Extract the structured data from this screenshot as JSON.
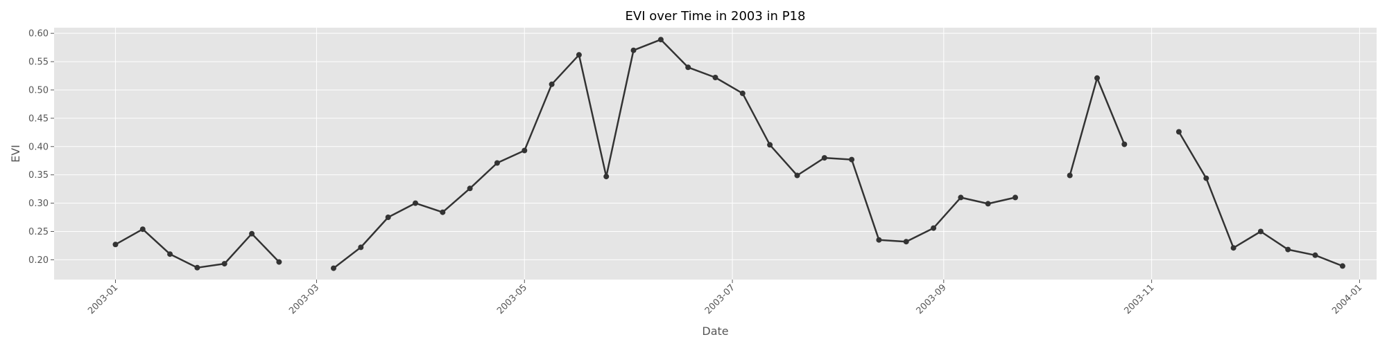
{
  "chart_data": {
    "type": "line",
    "title": "EVI over Time in 2003 in P18",
    "xlabel": "Date",
    "ylabel": "EVI",
    "ylim": [
      0.165,
      0.61
    ],
    "xlim": [
      "2002-12-14",
      "2004-01-06"
    ],
    "grid": true,
    "legend": "none",
    "colors": {
      "plot_background": "#e5e5e5",
      "grid": "#ffffff",
      "line": "#333333",
      "tick_text": "#555555"
    },
    "x_ticks": [
      "2003-01-01",
      "2003-03-01",
      "2003-05-01",
      "2003-07-01",
      "2003-09-01",
      "2003-11-01",
      "2004-01-01"
    ],
    "x_tick_labels": [
      "2003-01",
      "2003-03",
      "2003-05",
      "2003-07",
      "2003-09",
      "2003-11",
      "2004-01"
    ],
    "y_ticks": [
      0.2,
      0.25,
      0.3,
      0.35,
      0.4,
      0.45,
      0.5,
      0.55,
      0.6
    ],
    "y_tick_labels": [
      "0.20",
      "0.25",
      "0.30",
      "0.35",
      "0.40",
      "0.45",
      "0.50",
      "0.55",
      "0.60"
    ],
    "series": [
      {
        "points": [
          [
            "2003-01-01",
            0.227
          ],
          [
            "2003-01-09",
            0.254
          ],
          [
            "2003-01-17",
            0.21
          ],
          [
            "2003-01-25",
            0.186
          ],
          [
            "2003-02-02",
            0.193
          ],
          [
            "2003-02-10",
            0.246
          ],
          [
            "2003-02-18",
            0.196
          ],
          [
            "2003-02-26",
            null
          ],
          [
            "2003-03-06",
            0.185
          ],
          [
            "2003-03-14",
            0.222
          ],
          [
            "2003-03-22",
            0.275
          ],
          [
            "2003-03-30",
            0.3
          ],
          [
            "2003-04-07",
            0.284
          ],
          [
            "2003-04-15",
            0.326
          ],
          [
            "2003-04-23",
            0.371
          ],
          [
            "2003-05-01",
            0.393
          ],
          [
            "2003-05-09",
            0.51
          ],
          [
            "2003-05-17",
            0.562
          ],
          [
            "2003-05-25",
            0.347
          ],
          [
            "2003-06-02",
            0.57
          ],
          [
            "2003-06-10",
            0.589
          ],
          [
            "2003-06-18",
            0.54
          ],
          [
            "2003-06-26",
            0.522
          ],
          [
            "2003-07-04",
            0.494
          ],
          [
            "2003-07-12",
            0.403
          ],
          [
            "2003-07-20",
            0.349
          ],
          [
            "2003-07-28",
            0.38
          ],
          [
            "2003-08-05",
            0.377
          ],
          [
            "2003-08-13",
            0.235
          ],
          [
            "2003-08-21",
            0.232
          ],
          [
            "2003-08-29",
            0.256
          ],
          [
            "2003-09-06",
            0.31
          ],
          [
            "2003-09-14",
            0.299
          ],
          [
            "2003-09-22",
            0.31
          ],
          [
            "2003-09-30",
            null
          ],
          [
            "2003-10-08",
            0.349
          ],
          [
            "2003-10-16",
            0.521
          ],
          [
            "2003-10-24",
            0.404
          ],
          [
            "2003-11-01",
            null
          ],
          [
            "2003-11-09",
            0.426
          ],
          [
            "2003-11-17",
            0.344
          ],
          [
            "2003-11-25",
            0.221
          ],
          [
            "2003-12-03",
            0.25
          ],
          [
            "2003-12-11",
            0.218
          ],
          [
            "2003-12-19",
            0.208
          ],
          [
            "2003-12-27",
            0.189
          ]
        ]
      }
    ]
  }
}
